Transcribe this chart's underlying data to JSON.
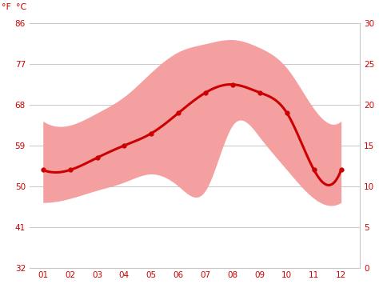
{
  "months": [
    1,
    2,
    3,
    4,
    5,
    6,
    7,
    8,
    9,
    10,
    11,
    12
  ],
  "month_labels": [
    "01",
    "02",
    "03",
    "04",
    "05",
    "06",
    "07",
    "08",
    "09",
    "10",
    "11",
    "12"
  ],
  "mean_temp_c": [
    12.0,
    12.0,
    13.5,
    15.0,
    16.5,
    19.0,
    21.5,
    22.5,
    21.5,
    19.0,
    12.0,
    12.0
  ],
  "max_temp_c": [
    18.0,
    17.5,
    19.0,
    21.0,
    24.0,
    26.5,
    27.5,
    28.0,
    27.0,
    24.5,
    19.5,
    18.0
  ],
  "min_temp_c": [
    8.0,
    8.5,
    9.5,
    10.5,
    11.5,
    10.0,
    9.5,
    17.5,
    16.0,
    12.0,
    8.5,
    8.0
  ],
  "ylim_c": [
    0,
    30
  ],
  "yticks_c": [
    0,
    5,
    10,
    15,
    20,
    25,
    30
  ],
  "yticks_f": [
    32,
    41,
    50,
    59,
    68,
    77,
    86
  ],
  "ylabel_left": "°F",
  "ylabel_right": "°C",
  "band_color": "#f4a0a0",
  "line_color": "#cc0000",
  "line_width": 2.2,
  "marker": "o",
  "marker_size": 3.5,
  "bg_color": "#ffffff",
  "grid_color": "#c8c8c8",
  "text_color": "#cc0000",
  "axis_label_fontsize": 8,
  "tick_fontsize": 7.5
}
